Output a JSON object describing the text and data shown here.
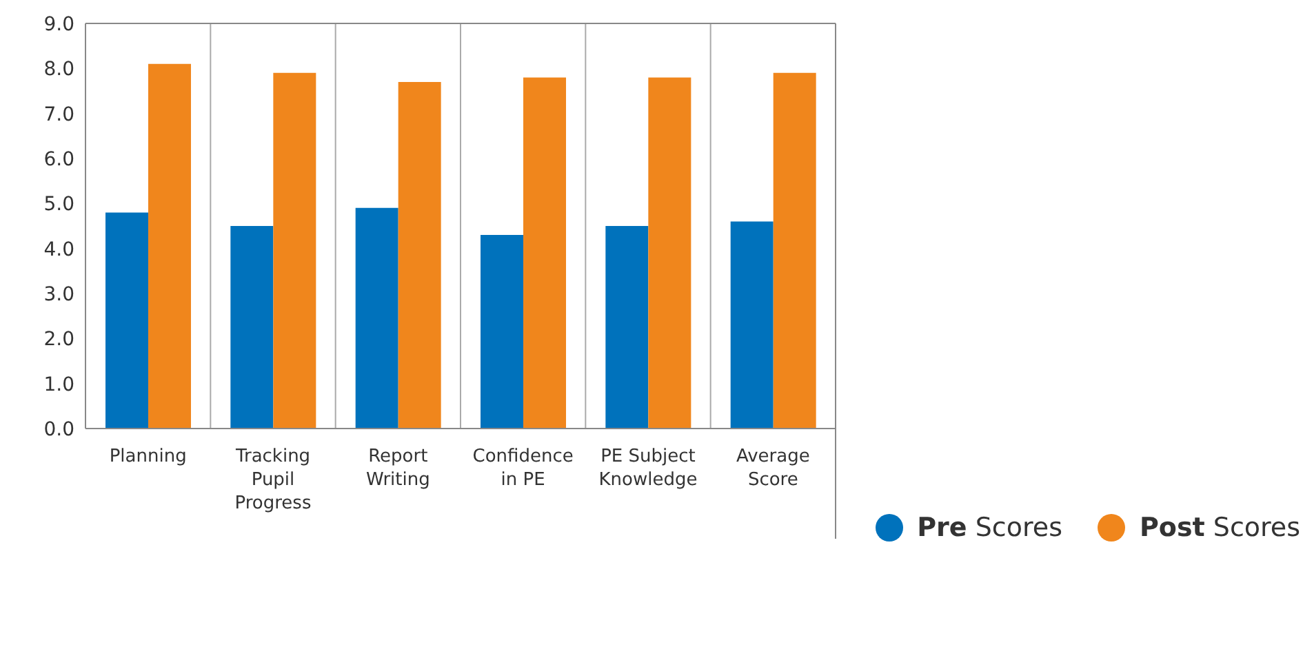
{
  "chart_data": {
    "type": "bar",
    "categories": [
      "Planning",
      "Tracking Pupil Progress",
      "Report Writing",
      "Confidence in PE",
      "PE Subject Knowledge",
      "Average Score"
    ],
    "series": [
      {
        "name": "Pre Scores",
        "color": "#0072bc",
        "values": [
          4.8,
          4.5,
          4.9,
          4.3,
          4.5,
          4.6
        ]
      },
      {
        "name": "Post Scores",
        "color": "#f0861c",
        "values": [
          8.1,
          7.9,
          7.7,
          7.8,
          7.8,
          7.9
        ]
      }
    ],
    "ylim": [
      0,
      9
    ],
    "yticks": [
      {
        "value": 0,
        "label": "0.0"
      },
      {
        "value": 1,
        "label": "1.0"
      },
      {
        "value": 2,
        "label": "2.0"
      },
      {
        "value": 3,
        "label": "3.0"
      },
      {
        "value": 4,
        "label": "4.0"
      },
      {
        "value": 5,
        "label": "5.0"
      },
      {
        "value": 6,
        "label": "6.0"
      },
      {
        "value": 7,
        "label": "7.0"
      },
      {
        "value": 8,
        "label": "8.0"
      },
      {
        "value": 9,
        "label": "9.0"
      }
    ],
    "grid": "x",
    "legend": "bottom right"
  }
}
